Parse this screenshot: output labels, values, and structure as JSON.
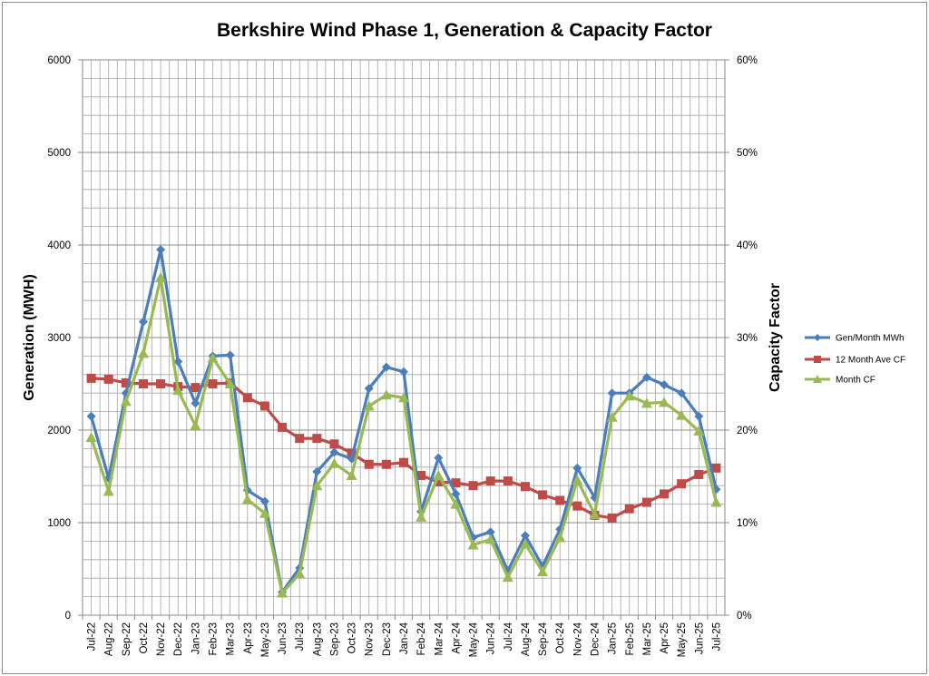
{
  "chart_data": {
    "type": "line",
    "title": "Berkshire Wind Phase 1, Generation & Capacity Factor",
    "ylabel": "Generation (MWH)",
    "y2label": "Capacity Factor",
    "ylim": [
      0,
      6000
    ],
    "y2lim": [
      0,
      0.6
    ],
    "yticks": [
      "0",
      "1000",
      "2000",
      "3000",
      "4000",
      "5000",
      "6000"
    ],
    "y2ticks": [
      "0%",
      "10%",
      "20%",
      "30%",
      "40%",
      "50%",
      "60%"
    ],
    "grid": true,
    "legend_position": "right",
    "categories": [
      "Jul-22",
      "Aug-22",
      "Sep-22",
      "Oct-22",
      "Nov-22",
      "Dec-22",
      "Jan-23",
      "Feb-23",
      "Mar-23",
      "Apr-23",
      "May-23",
      "Jun-23",
      "Jul-23",
      "Aug-23",
      "Sep-23",
      "Oct-23",
      "Nov-23",
      "Dec-23",
      "Jan-24",
      "Feb-24",
      "Mar-24",
      "Apr-24",
      "May-24",
      "Jun-24",
      "Jul-24",
      "Aug-24",
      "Sep-24",
      "Oct-24",
      "Nov-24",
      "Dec-24",
      "Jan-25",
      "Feb-25",
      "Mar-25",
      "Apr-25",
      "May-25",
      "Jun-25",
      "Jul-25"
    ],
    "series": [
      {
        "name": "Gen/Month MWh",
        "axis": "left",
        "color": "#4a7ebb",
        "marker": "diamond",
        "values": [
          2150,
          1480,
          2400,
          3170,
          3950,
          2740,
          2290,
          2800,
          2810,
          1350,
          1230,
          250,
          510,
          1550,
          1760,
          1690,
          2450,
          2680,
          2630,
          1120,
          1700,
          1310,
          840,
          900,
          480,
          860,
          530,
          930,
          1590,
          1270,
          2400,
          2400,
          2570,
          2490,
          2400,
          2150,
          1360
        ]
      },
      {
        "name": "12  Month Ave CF",
        "axis": "right",
        "color": "#be4b48",
        "marker": "square",
        "values": [
          0.256,
          0.255,
          0.251,
          0.25,
          0.25,
          0.247,
          0.246,
          0.25,
          0.251,
          0.235,
          0.226,
          0.203,
          0.191,
          0.191,
          0.185,
          0.175,
          0.163,
          0.163,
          0.165,
          0.151,
          0.144,
          0.143,
          0.14,
          0.145,
          0.145,
          0.139,
          0.13,
          0.124,
          0.118,
          0.108,
          0.105,
          0.115,
          0.122,
          0.131,
          0.142,
          0.152,
          0.159
        ]
      },
      {
        "name": "Month CF",
        "axis": "right",
        "color": "#98b954",
        "marker": "triangle",
        "values": [
          0.192,
          0.134,
          0.231,
          0.283,
          0.365,
          0.243,
          0.205,
          0.278,
          0.25,
          0.125,
          0.11,
          0.024,
          0.045,
          0.14,
          0.164,
          0.151,
          0.226,
          0.238,
          0.235,
          0.106,
          0.151,
          0.12,
          0.076,
          0.082,
          0.041,
          0.077,
          0.047,
          0.084,
          0.146,
          0.109,
          0.214,
          0.237,
          0.229,
          0.23,
          0.216,
          0.199,
          0.122
        ]
      }
    ]
  }
}
